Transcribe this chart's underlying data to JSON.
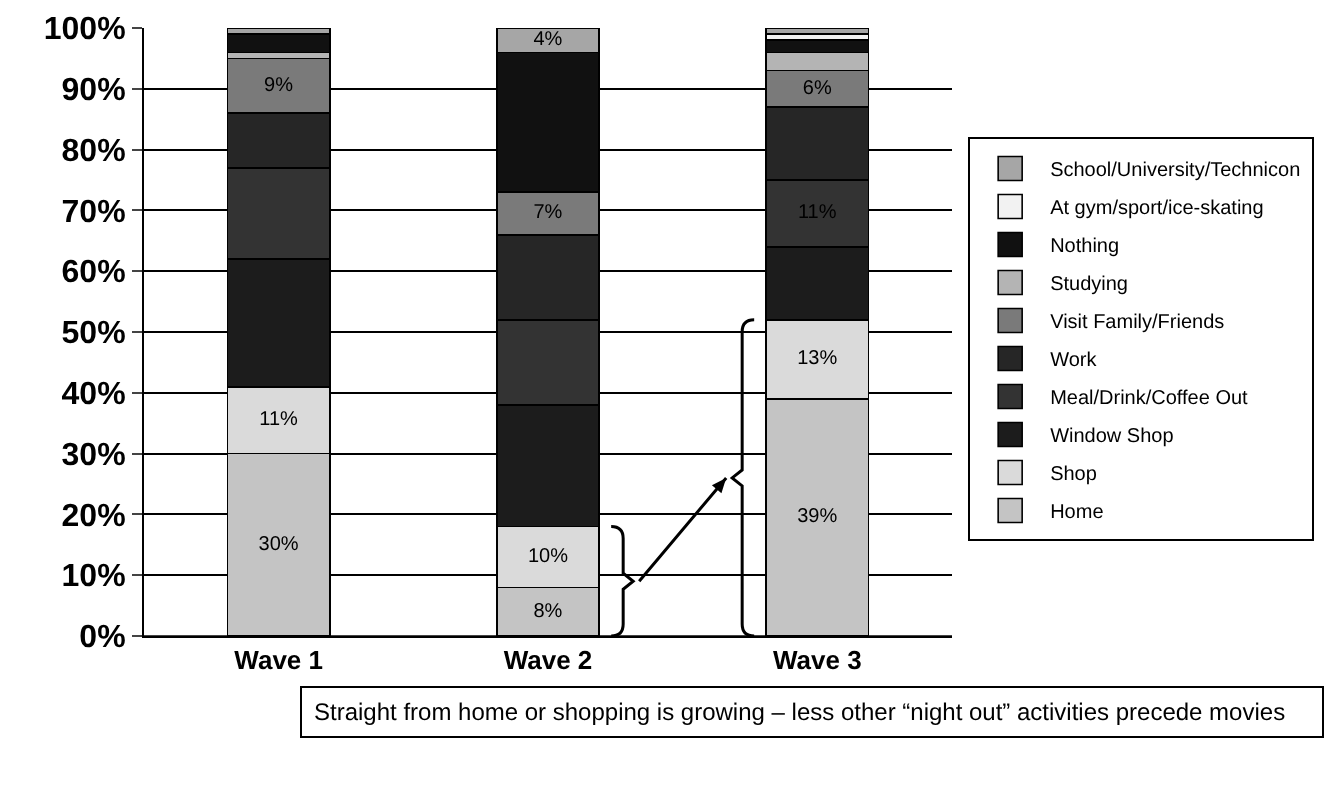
{
  "chart_data": {
    "type": "bar",
    "stacked": true,
    "categories": [
      "Wave 1",
      "Wave 2",
      "Wave 3"
    ],
    "series": [
      {
        "name": "Home",
        "color": "#c4c4c4",
        "values": [
          30,
          8,
          39
        ],
        "value_labels": [
          "30%",
          "8%",
          "39%"
        ]
      },
      {
        "name": "Shop",
        "color": "#dadada",
        "values": [
          11,
          10,
          13
        ],
        "value_labels": [
          "11%",
          "10%",
          "13%"
        ]
      },
      {
        "name": "Window Shop",
        "color": "#1c1c1c",
        "values": [
          21,
          20,
          12
        ]
      },
      {
        "name": "Meal/Drink/Coffee Out",
        "color": "#333333",
        "values": [
          15,
          14,
          11
        ],
        "value_labels": [
          null,
          null,
          "11%"
        ]
      },
      {
        "name": "Work",
        "color": "#262626",
        "values": [
          9,
          14,
          12
        ]
      },
      {
        "name": "Visit Family/Friends",
        "color": "#7a7a7a",
        "values": [
          9,
          7,
          6
        ],
        "value_labels": [
          "9%",
          "7%",
          "6%"
        ]
      },
      {
        "name": "Studying",
        "color": "#b4b4b4",
        "values": [
          1,
          0,
          3
        ]
      },
      {
        "name": "Nothing",
        "color": "#111111",
        "values": [
          3,
          23,
          2
        ]
      },
      {
        "name": "At gym/sport/ice-skating",
        "color": "#f2f2f2",
        "values": [
          0,
          0,
          1
        ]
      },
      {
        "name": "School/University/Technicon",
        "color": "#a6a6a6",
        "values": [
          1,
          4,
          1
        ],
        "value_labels": [
          null,
          "4%",
          null
        ]
      }
    ],
    "ylim": [
      0,
      100
    ],
    "yticks": [
      {
        "value": 0,
        "label": "0%"
      },
      {
        "value": 10,
        "label": "10%"
      },
      {
        "value": 20,
        "label": "20%"
      },
      {
        "value": 30,
        "label": "30%"
      },
      {
        "value": 40,
        "label": "40%"
      },
      {
        "value": 50,
        "label": "50%"
      },
      {
        "value": 60,
        "label": "60%"
      },
      {
        "value": 70,
        "label": "70%"
      },
      {
        "value": 80,
        "label": "80%"
      },
      {
        "value": 90,
        "label": "90%"
      },
      {
        "value": 100,
        "label": "100%"
      }
    ],
    "grid": "y",
    "legend": "right",
    "annotations": [
      "Straight from home or shopping is growing – less other “night out” activities precede movies"
    ]
  }
}
